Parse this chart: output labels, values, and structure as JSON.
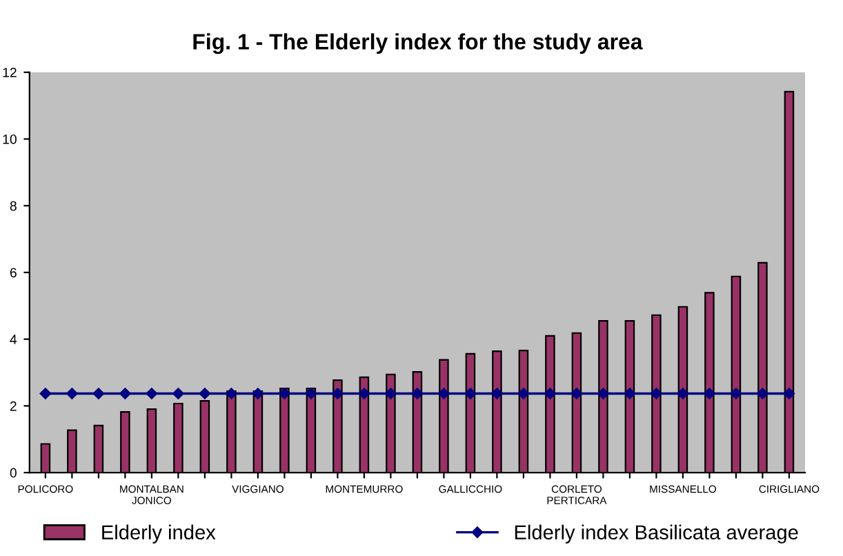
{
  "chart_data": {
    "type": "bar",
    "title": "Fig. 1 - The Elderly index for the study area",
    "categories": [
      "POLICORO",
      null,
      null,
      null,
      "MONTALBAN\nJONICO",
      null,
      null,
      null,
      "VIGGIANO",
      null,
      null,
      null,
      "MONTEMURRO",
      null,
      null,
      null,
      "GALLICCHIO",
      null,
      null,
      null,
      "CORLETO\nPERTICARA",
      null,
      null,
      null,
      "MISSANELLO",
      null,
      null,
      null,
      "CIRIGLIANO"
    ],
    "series": [
      {
        "name": "Elderly index",
        "color": "#993366",
        "values": [
          0.86,
          1.27,
          1.41,
          1.82,
          1.9,
          2.07,
          2.15,
          2.44,
          2.44,
          2.52,
          2.52,
          2.77,
          2.86,
          2.94,
          3.02,
          3.38,
          3.56,
          3.64,
          3.66,
          4.1,
          4.18,
          4.55,
          4.55,
          4.72,
          4.97,
          5.39,
          5.88,
          6.29,
          11.42
        ]
      },
      {
        "name": "Elderly index Basilicata average",
        "type": "line",
        "color": "#000080",
        "marker": "diamond",
        "values": [
          2.37,
          2.37,
          2.37,
          2.37,
          2.37,
          2.37,
          2.37,
          2.37,
          2.37,
          2.37,
          2.37,
          2.37,
          2.37,
          2.37,
          2.37,
          2.37,
          2.37,
          2.37,
          2.37,
          2.37,
          2.37,
          2.37,
          2.37,
          2.37,
          2.37,
          2.37,
          2.37,
          2.37,
          2.37
        ]
      }
    ],
    "ylim": [
      0,
      12
    ],
    "yticks": [
      0,
      2,
      4,
      6,
      8,
      10,
      12
    ],
    "grid": false,
    "legend": "bottom"
  }
}
